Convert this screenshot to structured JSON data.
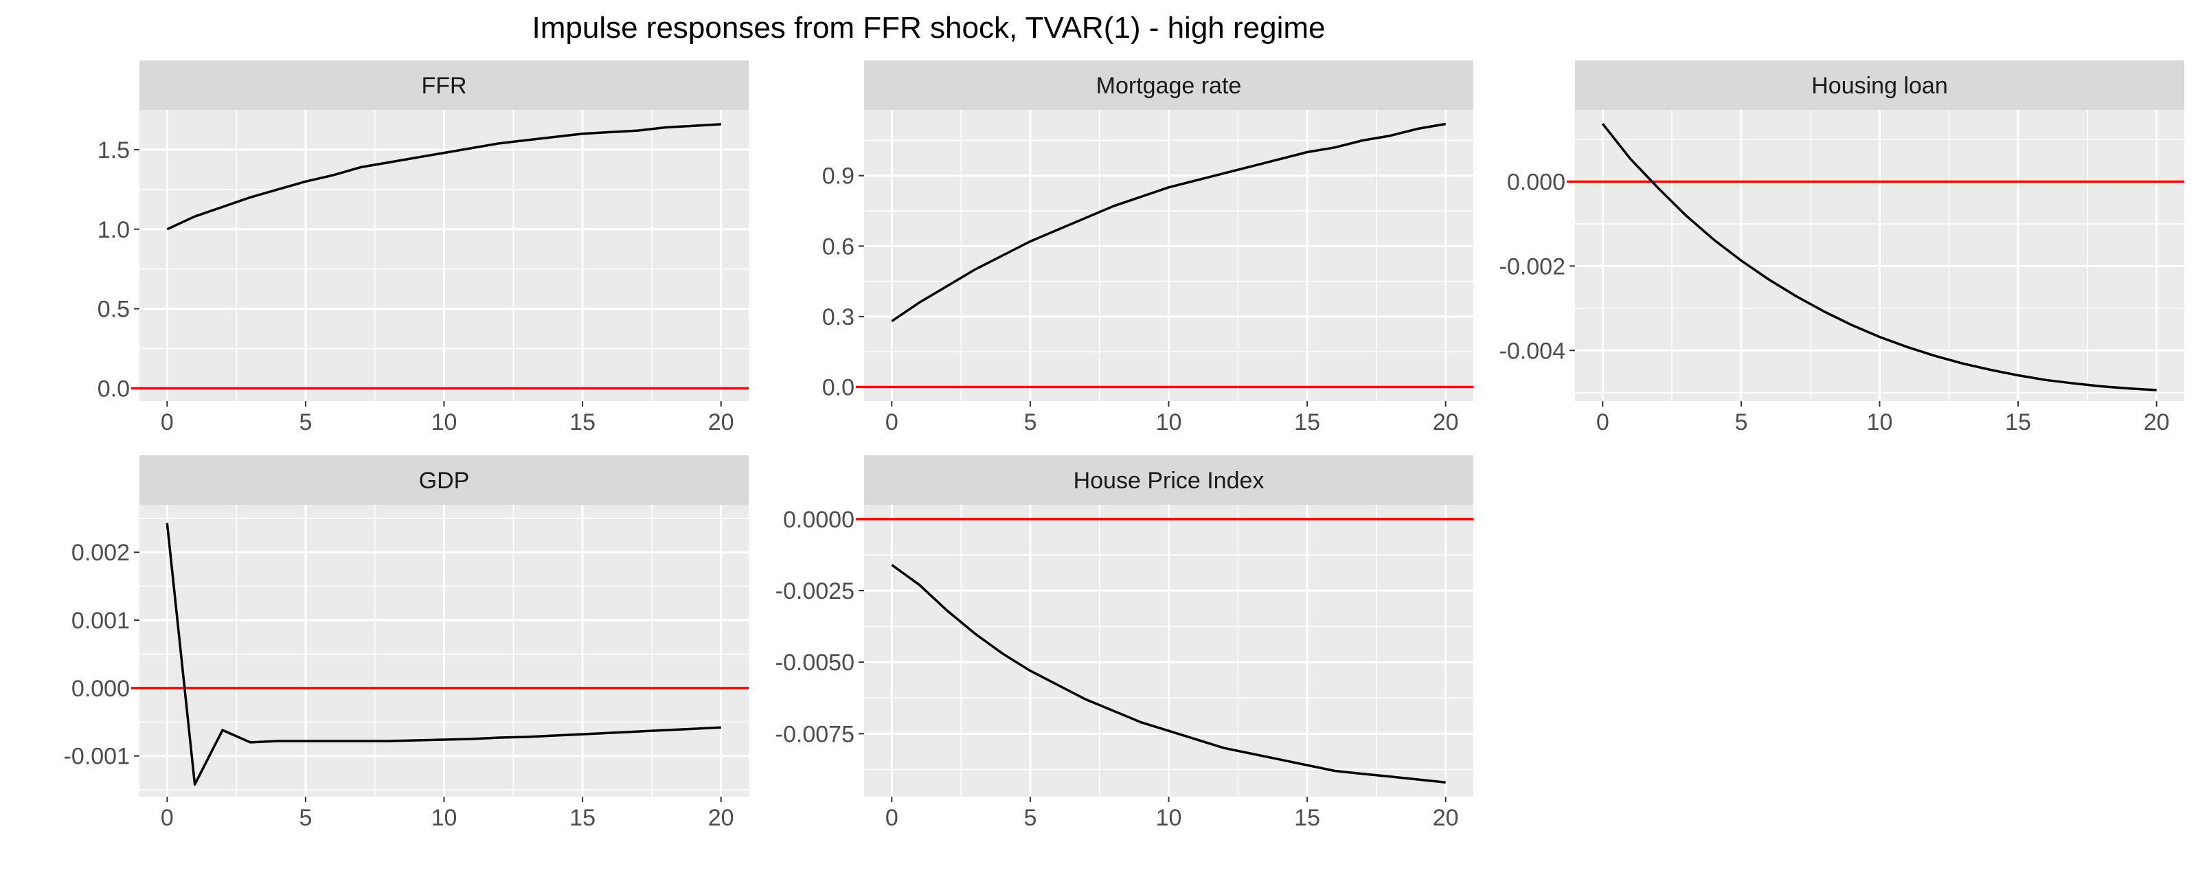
{
  "title": "Impulse responses from FFR shock, TVAR(1) - high regime",
  "colors": {
    "panel_background": "#ebebeb",
    "strip_background": "#d9d9d9",
    "grid": "#ffffff",
    "response_line": "#000000",
    "zero_line": "#ff0000"
  },
  "chart_data": [
    {
      "type": "line",
      "panel_title": "FFR",
      "x": [
        0,
        1,
        2,
        3,
        4,
        5,
        6,
        7,
        8,
        9,
        10,
        11,
        12,
        13,
        14,
        15,
        16,
        17,
        18,
        19,
        20
      ],
      "series": [
        {
          "values": [
            1.0,
            1.08,
            1.14,
            1.2,
            1.25,
            1.3,
            1.34,
            1.39,
            1.42,
            1.45,
            1.48,
            1.51,
            1.54,
            1.56,
            1.58,
            1.6,
            1.61,
            1.62,
            1.64,
            1.65,
            1.66
          ]
        }
      ],
      "reference_line": 0,
      "xlim": [
        -1,
        21
      ],
      "ylim": [
        -0.08,
        1.75
      ],
      "x_ticks": [
        0,
        5,
        10,
        15,
        20
      ],
      "y_ticks": [
        0.0,
        0.5,
        1.0,
        1.5
      ],
      "x_tick_labels": [
        "0",
        "5",
        "10",
        "15",
        "20"
      ],
      "y_tick_labels": [
        "0.0",
        "0.5",
        "1.0",
        "1.5"
      ],
      "xlabel": "",
      "ylabel": "",
      "grid": true
    },
    {
      "type": "line",
      "panel_title": "Mortgage rate",
      "x": [
        0,
        1,
        2,
        3,
        4,
        5,
        6,
        7,
        8,
        9,
        10,
        11,
        12,
        13,
        14,
        15,
        16,
        17,
        18,
        19,
        20
      ],
      "series": [
        {
          "values": [
            0.28,
            0.36,
            0.43,
            0.5,
            0.56,
            0.62,
            0.67,
            0.72,
            0.77,
            0.81,
            0.85,
            0.88,
            0.91,
            0.94,
            0.97,
            1.0,
            1.02,
            1.05,
            1.07,
            1.1,
            1.12
          ]
        }
      ],
      "reference_line": 0,
      "xlim": [
        -1,
        21
      ],
      "ylim": [
        -0.06,
        1.18
      ],
      "x_ticks": [
        0,
        5,
        10,
        15,
        20
      ],
      "y_ticks": [
        0.0,
        0.3,
        0.6,
        0.9
      ],
      "x_tick_labels": [
        "0",
        "5",
        "10",
        "15",
        "20"
      ],
      "y_tick_labels": [
        "0.0",
        "0.3",
        "0.6",
        "0.9"
      ],
      "xlabel": "",
      "ylabel": "",
      "grid": true
    },
    {
      "type": "line",
      "panel_title": "Housing loan",
      "x": [
        0,
        1,
        2,
        3,
        4,
        5,
        6,
        7,
        8,
        9,
        10,
        11,
        12,
        13,
        14,
        15,
        16,
        17,
        18,
        19,
        20
      ],
      "series": [
        {
          "values": [
            0.00137,
            0.00054,
            -0.00015,
            -0.0008,
            -0.00137,
            -0.00187,
            -0.00232,
            -0.00272,
            -0.00308,
            -0.0034,
            -0.00368,
            -0.00392,
            -0.00413,
            -0.00431,
            -0.00446,
            -0.00459,
            -0.0047,
            -0.00478,
            -0.00485,
            -0.0049,
            -0.00494
          ]
        }
      ],
      "reference_line": 0,
      "xlim": [
        -1,
        21
      ],
      "ylim": [
        -0.0052,
        0.0017
      ],
      "x_ticks": [
        0,
        5,
        10,
        15,
        20
      ],
      "y_ticks": [
        0.0,
        -0.002,
        -0.004
      ],
      "x_tick_labels": [
        "0",
        "5",
        "10",
        "15",
        "20"
      ],
      "y_tick_labels": [
        "0.000",
        "-0.002",
        "-0.004"
      ],
      "xlabel": "",
      "ylabel": "",
      "grid": true
    },
    {
      "type": "line",
      "panel_title": "GDP",
      "x": [
        0,
        1,
        2,
        3,
        4,
        5,
        6,
        7,
        8,
        9,
        10,
        11,
        12,
        13,
        14,
        15,
        16,
        17,
        18,
        19,
        20
      ],
      "series": [
        {
          "values": [
            0.00243,
            -0.00142,
            -0.00062,
            -0.0008,
            -0.00078,
            -0.00078,
            -0.00078,
            -0.00078,
            -0.00078,
            -0.00077,
            -0.00076,
            -0.00075,
            -0.00073,
            -0.00072,
            -0.0007,
            -0.00068,
            -0.00066,
            -0.00064,
            -0.00062,
            -0.0006,
            -0.00058
          ]
        }
      ],
      "reference_line": 0,
      "xlim": [
        -1,
        21
      ],
      "ylim": [
        -0.0016,
        0.0027
      ],
      "x_ticks": [
        0,
        5,
        10,
        15,
        20
      ],
      "y_ticks": [
        0.002,
        0.001,
        0.0,
        -0.001
      ],
      "x_tick_labels": [
        "0",
        "5",
        "10",
        "15",
        "20"
      ],
      "y_tick_labels": [
        "0.002",
        "0.001",
        "0.000",
        "-0.001"
      ],
      "xlabel": "",
      "ylabel": "",
      "grid": true
    },
    {
      "type": "line",
      "panel_title": "House Price Index",
      "x": [
        0,
        1,
        2,
        3,
        4,
        5,
        6,
        7,
        8,
        9,
        10,
        11,
        12,
        13,
        14,
        15,
        16,
        17,
        18,
        19,
        20
      ],
      "series": [
        {
          "values": [
            -0.0016,
            -0.0023,
            -0.0032,
            -0.004,
            -0.0047,
            -0.0053,
            -0.0058,
            -0.0063,
            -0.0067,
            -0.0071,
            -0.0074,
            -0.0077,
            -0.008,
            -0.0082,
            -0.0084,
            -0.0086,
            -0.0088,
            -0.0089,
            -0.009,
            -0.0091,
            -0.0092
          ]
        }
      ],
      "reference_line": 0,
      "xlim": [
        -1,
        21
      ],
      "ylim": [
        -0.0097,
        0.0005
      ],
      "x_ticks": [
        0,
        5,
        10,
        15,
        20
      ],
      "y_ticks": [
        0.0,
        -0.0025,
        -0.005,
        -0.0075
      ],
      "x_tick_labels": [
        "0",
        "5",
        "10",
        "15",
        "20"
      ],
      "y_tick_labels": [
        "0.0000",
        "-0.0025",
        "-0.0050",
        "-0.0075"
      ],
      "xlabel": "",
      "ylabel": "",
      "grid": true
    }
  ]
}
